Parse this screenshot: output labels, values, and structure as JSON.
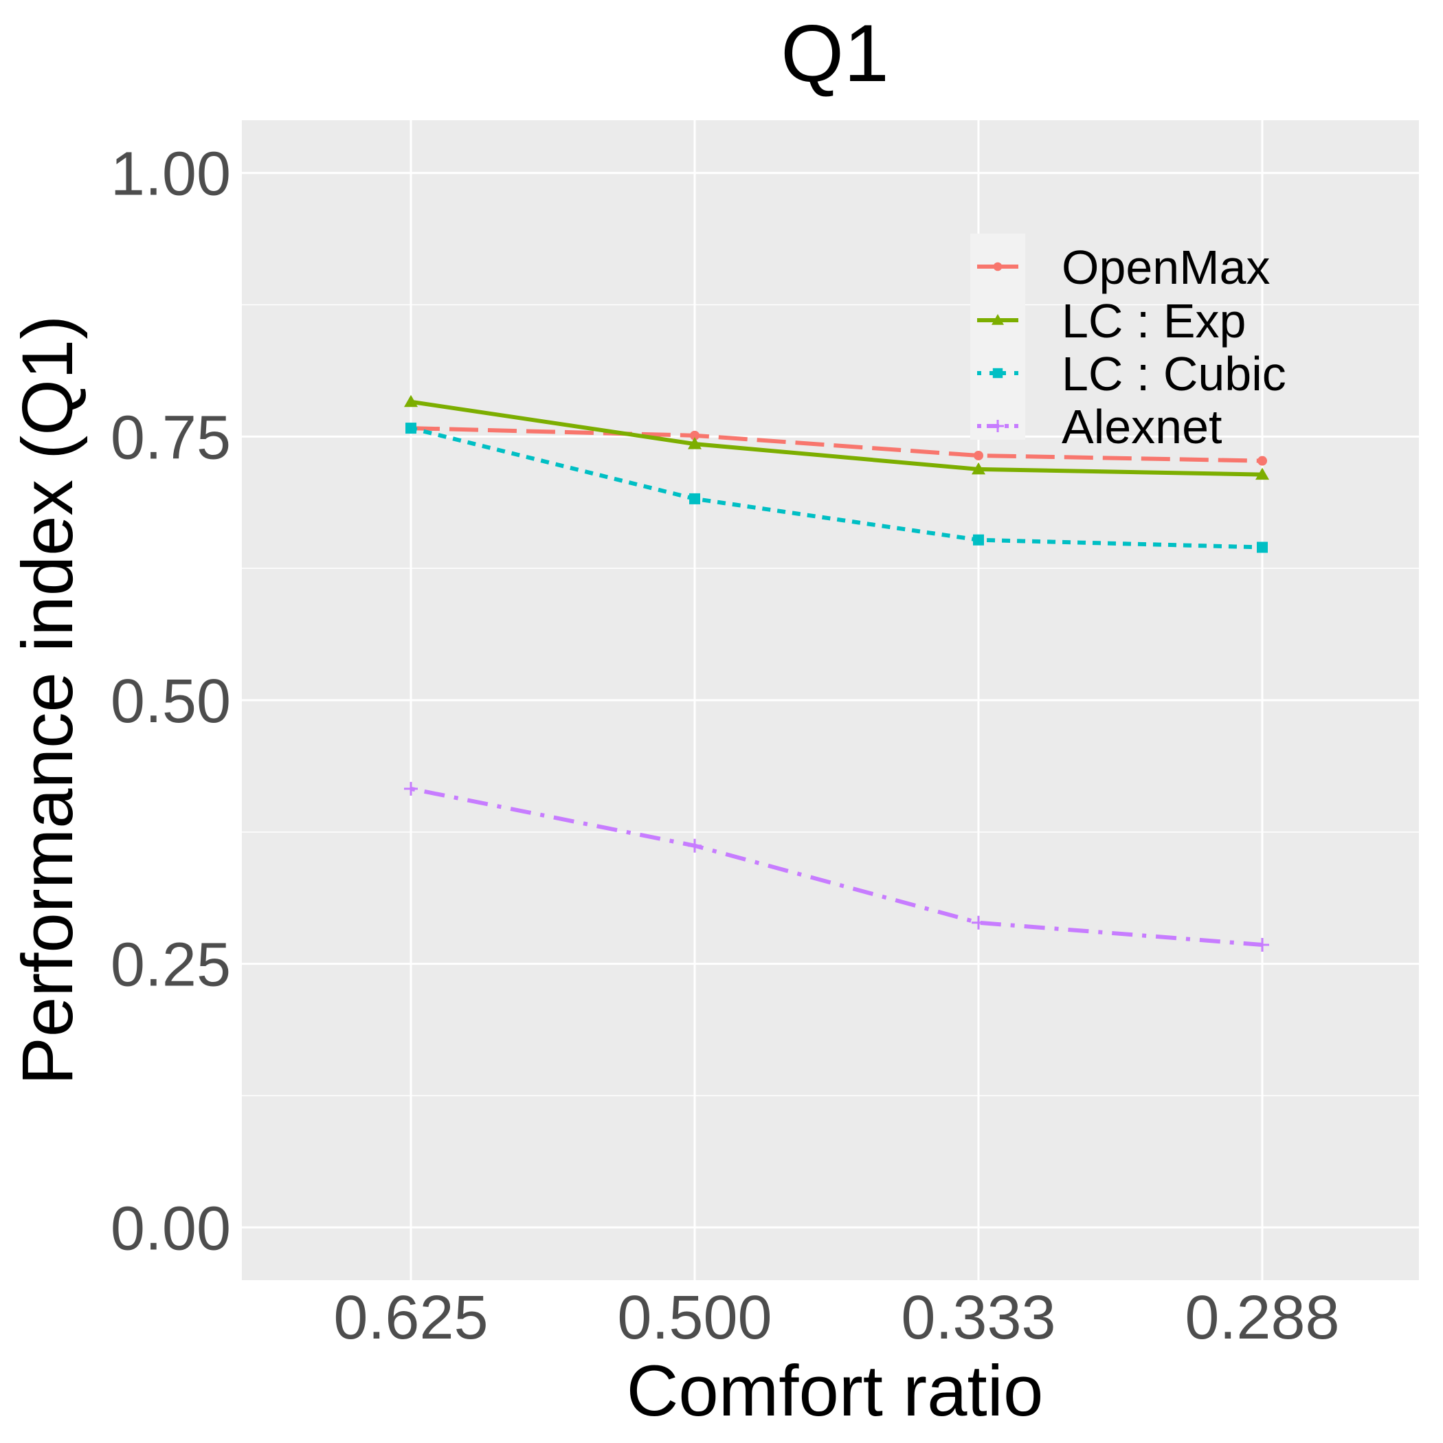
{
  "chart_data": {
    "type": "line",
    "title": "Q1",
    "xlabel": "Comfort ratio",
    "ylabel": "Performance index (Q1)",
    "categories": [
      "0.625",
      "0.500",
      "0.333",
      "0.288"
    ],
    "ylim": [
      -0.05,
      1.05
    ],
    "yticks": [
      0.0,
      0.25,
      0.5,
      0.75,
      1.0
    ],
    "ytick_labels": [
      "0.00",
      "0.25",
      "0.50",
      "0.75",
      "1.00"
    ],
    "grid": true,
    "legend_position": "top-right",
    "series": [
      {
        "name": "OpenMax",
        "values": [
          0.758,
          0.751,
          0.732,
          0.727
        ],
        "color": "#F8766D",
        "dash": "longdash",
        "marker": "circle"
      },
      {
        "name": "LC : Exp",
        "values": [
          0.783,
          0.743,
          0.719,
          0.714
        ],
        "color": "#7CAE00",
        "dash": "solid",
        "marker": "triangle"
      },
      {
        "name": "LC : Cubic",
        "values": [
          0.758,
          0.691,
          0.652,
          0.645
        ],
        "color": "#00BFC4",
        "dash": "dotted",
        "marker": "square"
      },
      {
        "name": "Alexnet",
        "values": [
          0.416,
          0.362,
          0.289,
          0.268
        ],
        "color": "#C77CFF",
        "dash": "dotdash",
        "marker": "plus"
      }
    ]
  }
}
